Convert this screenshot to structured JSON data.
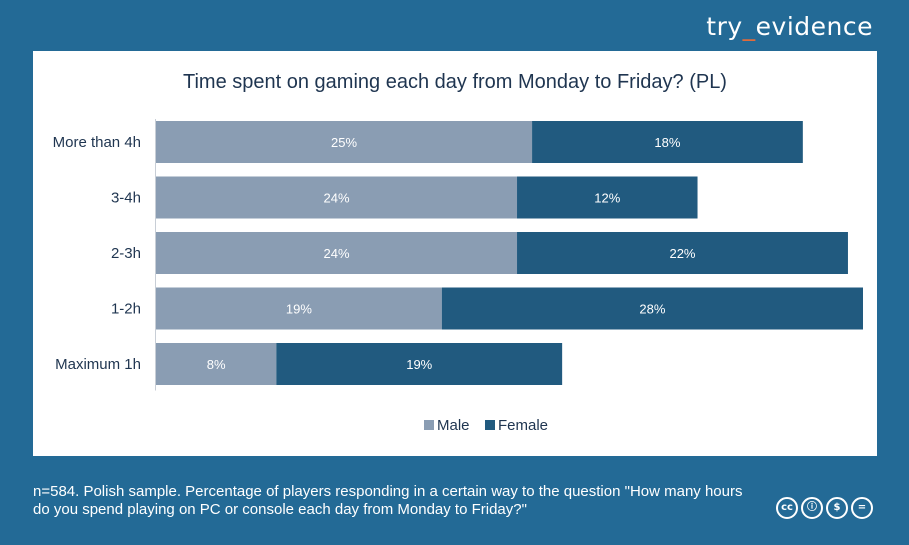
{
  "brand": {
    "prefix": "try",
    "mark": "_",
    "suffix": "evidence"
  },
  "chart_data": {
    "type": "bar",
    "orientation": "horizontal",
    "stacked": true,
    "title": "Time spent on gaming each day from Monday to Friday? (PL)",
    "categories": [
      "More than 4h",
      "3-4h",
      "2-3h",
      "1-2h",
      "Maximum 1h"
    ],
    "series": [
      {
        "name": "Male",
        "values": [
          25,
          24,
          24,
          19,
          8
        ],
        "labels": [
          "25%",
          "24%",
          "24%",
          "19%",
          "8%"
        ],
        "color": "#8a9db3"
      },
      {
        "name": "Female",
        "values": [
          18,
          12,
          22,
          28,
          19
        ],
        "labels": [
          "18%",
          "12%",
          "22%",
          "28%",
          "19%"
        ],
        "color": "#215a7f"
      }
    ],
    "legend_position": "bottom",
    "xlim": [
      0,
      47
    ],
    "grid": false
  },
  "footer": {
    "note": "n=584. Polish sample. Percentage of players responding in a certain way to the question \"How many hours do you spend playing on PC or console each day from Monday to Friday?\"",
    "license_icons": [
      {
        "name": "cc-icon",
        "glyph": "cc"
      },
      {
        "name": "by-icon",
        "glyph": "ⓘ"
      },
      {
        "name": "nc-icon",
        "glyph": "$"
      },
      {
        "name": "nd-icon",
        "glyph": "="
      }
    ]
  }
}
